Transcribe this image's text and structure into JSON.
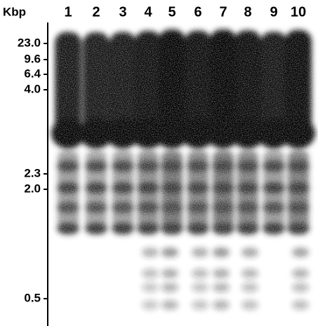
{
  "gel": {
    "unit_label": "Kbp",
    "lanes": [
      "1",
      "2",
      "3",
      "4",
      "5",
      "6",
      "7",
      "8",
      "9",
      "10"
    ],
    "markers": [
      "23.0",
      "9.6",
      "6.4",
      "4.0",
      "2.3",
      "2.0",
      "0.5"
    ]
  }
}
